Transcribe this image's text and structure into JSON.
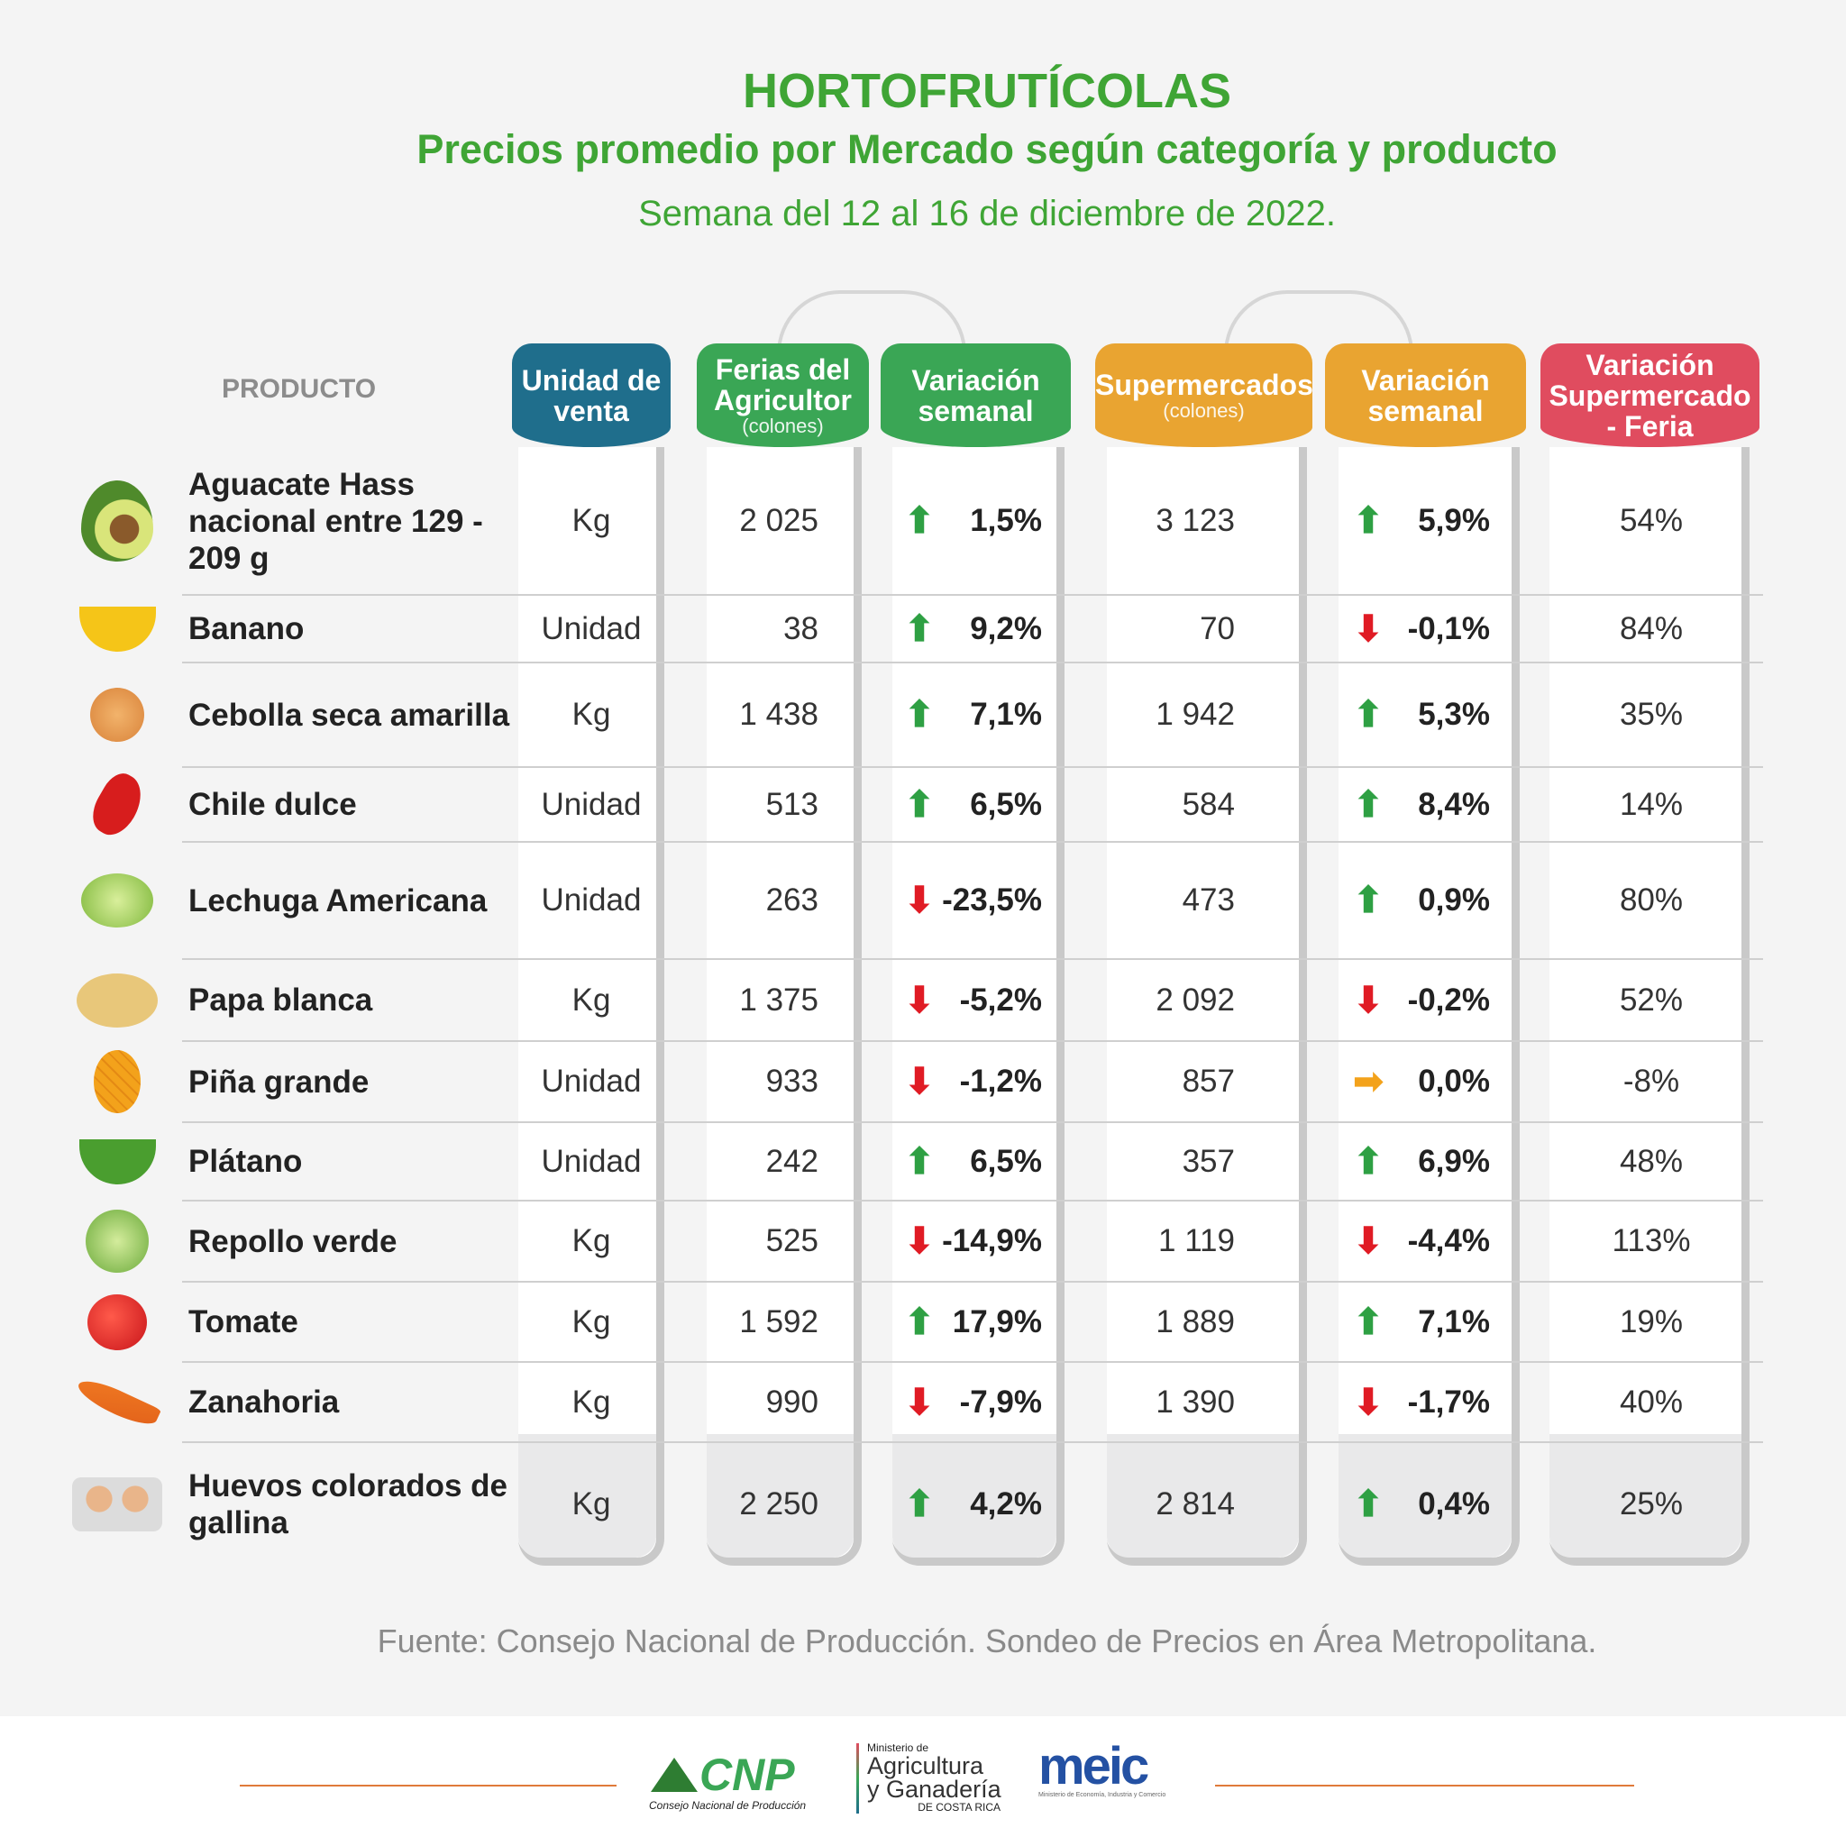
{
  "header": {
    "title": "HORTOFRUTÍCOLAS",
    "subtitle": "Precios promedio por Mercado según categoría y producto",
    "week": "Semana del 12 al 16 de diciembre de 2022."
  },
  "columns": {
    "product": "PRODUCTO",
    "unit": "Unidad de venta",
    "ferias": "Ferias del Agricultor",
    "ferias_sub": "(colones)",
    "ferias_var": "Variación semanal",
    "super": "Supermercados",
    "super_sub": "(colones)",
    "super_var": "Variación semanal",
    "diff": "Variación Supermercado - Feria"
  },
  "colors": {
    "unit": "#1f6e8c",
    "ferias": "#3aa655",
    "super": "#e9a431",
    "diff": "#e04c5f",
    "up": "#2ea043",
    "down": "#e01b24",
    "flat": "#f3a21b"
  },
  "rows": [
    {
      "product": "Aguacate Hass nacional entre 129 - 209 g",
      "icon": "avocado-icon",
      "unit": "Kg",
      "ferias": "2 025",
      "ferias_var": "1,5%",
      "ferias_dir": "up",
      "super": "3 123",
      "super_var": "5,9%",
      "super_dir": "up",
      "diff": "54%"
    },
    {
      "product": "Banano",
      "icon": "banana-icon",
      "unit": "Unidad",
      "ferias": "38",
      "ferias_var": "9,2%",
      "ferias_dir": "up",
      "super": "70",
      "super_var": "-0,1%",
      "super_dir": "down",
      "diff": "84%"
    },
    {
      "product": "Cebolla seca amarilla",
      "icon": "onion-icon",
      "unit": "Kg",
      "ferias": "1 438",
      "ferias_var": "7,1%",
      "ferias_dir": "up",
      "super": "1 942",
      "super_var": "5,3%",
      "super_dir": "up",
      "diff": "35%"
    },
    {
      "product": "Chile dulce",
      "icon": "pepper-icon",
      "unit": "Unidad",
      "ferias": "513",
      "ferias_var": "6,5%",
      "ferias_dir": "up",
      "super": "584",
      "super_var": "8,4%",
      "super_dir": "up",
      "diff": "14%"
    },
    {
      "product": "Lechuga Americana",
      "icon": "lettuce-icon",
      "unit": "Unidad",
      "ferias": "263",
      "ferias_var": "-23,5%",
      "ferias_dir": "down",
      "super": "473",
      "super_var": "0,9%",
      "super_dir": "up",
      "diff": "80%"
    },
    {
      "product": "Papa blanca",
      "icon": "potato-icon",
      "unit": "Kg",
      "ferias": "1 375",
      "ferias_var": "-5,2%",
      "ferias_dir": "down",
      "super": "2 092",
      "super_var": "-0,2%",
      "super_dir": "down",
      "diff": "52%"
    },
    {
      "product": "Piña grande",
      "icon": "pineapple-icon",
      "unit": "Unidad",
      "ferias": "933",
      "ferias_var": "-1,2%",
      "ferias_dir": "down",
      "super": "857",
      "super_var": "0,0%",
      "super_dir": "flat",
      "diff": "-8%"
    },
    {
      "product": "Plátano",
      "icon": "plantain-icon",
      "unit": "Unidad",
      "ferias": "242",
      "ferias_var": "6,5%",
      "ferias_dir": "up",
      "super": "357",
      "super_var": "6,9%",
      "super_dir": "up",
      "diff": "48%"
    },
    {
      "product": "Repollo verde",
      "icon": "cabbage-icon",
      "unit": "Kg",
      "ferias": "525",
      "ferias_var": "-14,9%",
      "ferias_dir": "down",
      "super": "1 119",
      "super_var": "-4,4%",
      "super_dir": "down",
      "diff": "113%"
    },
    {
      "product": "Tomate",
      "icon": "tomato-icon",
      "unit": "Kg",
      "ferias": "1 592",
      "ferias_var": "17,9%",
      "ferias_dir": "up",
      "super": "1 889",
      "super_var": "7,1%",
      "super_dir": "up",
      "diff": "19%"
    },
    {
      "product": "Zanahoria",
      "icon": "carrot-icon",
      "unit": "Kg",
      "ferias": "990",
      "ferias_var": "-7,9%",
      "ferias_dir": "down",
      "super": "1 390",
      "super_var": "-1,7%",
      "super_dir": "down",
      "diff": "40%"
    },
    {
      "product": "Huevos colorados de gallina",
      "icon": "eggs-icon",
      "unit": "Kg",
      "ferias": "2 250",
      "ferias_var": "4,2%",
      "ferias_dir": "up",
      "super": "2 814",
      "super_var": "0,4%",
      "super_dir": "up",
      "diff": "25%"
    }
  ],
  "source": "Fuente: Consejo Nacional de Producción. Sondeo de Precios en Área Metropolitana.",
  "footer": {
    "cnp": "CNP",
    "cnp_sub": "Consejo Nacional de Producción",
    "mag_top": "Ministerio de",
    "mag_main": "Agricultura y Ganadería",
    "mag_sub": "DE COSTA RICA",
    "meic": "meic",
    "meic_sub": "Ministerio de Economía, Industria y Comercio"
  }
}
